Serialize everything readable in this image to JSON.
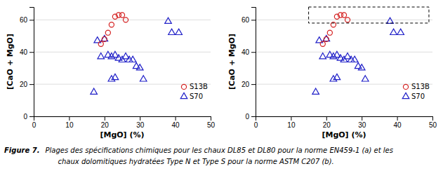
{
  "chart_data": [
    {
      "type": "scatter",
      "xlabel": "[MgO] (%)",
      "ylabel": "[CaO + MgO]",
      "xlim": [
        0,
        50
      ],
      "ylim": [
        0,
        68
      ],
      "xticks": [
        0,
        10,
        20,
        30,
        40,
        50
      ],
      "yticks": [
        0,
        20,
        40,
        60
      ],
      "grid": "y",
      "legend": "lower right",
      "series": [
        {
          "name": "S13B",
          "color": "#d42020",
          "marker": "circle",
          "x": [
            19,
            20,
            21,
            22,
            23,
            24,
            25,
            26
          ],
          "values": [
            45,
            48,
            52,
            57,
            62,
            63,
            63,
            60
          ]
        },
        {
          "name": "S70",
          "color": "#2020c8",
          "marker": "triangle",
          "x": [
            17,
            18,
            19,
            20,
            21,
            22,
            23,
            24,
            25,
            26,
            27,
            28,
            29,
            30,
            31,
            38,
            39,
            41,
            22,
            23
          ],
          "values": [
            15,
            47,
            37,
            48,
            38,
            37,
            38,
            36,
            35,
            37,
            35,
            35,
            31,
            30,
            23,
            59,
            52,
            52,
            23,
            24
          ]
        }
      ]
    },
    {
      "type": "scatter",
      "xlabel": "[MgO] (%)",
      "ylabel": "[CaO + MgO]",
      "xlim": [
        0,
        50
      ],
      "ylim": [
        0,
        68
      ],
      "xticks": [
        0,
        10,
        20,
        30,
        40,
        50
      ],
      "yticks": [
        0,
        20,
        40,
        60
      ],
      "grid": "y",
      "legend": "lower right",
      "series": [
        {
          "name": "S13B",
          "color": "#d42020",
          "marker": "circle",
          "x": [
            19,
            20,
            21,
            22,
            23,
            24,
            25,
            26
          ],
          "values": [
            45,
            48,
            52,
            57,
            62,
            63,
            63,
            60
          ]
        },
        {
          "name": "S70",
          "color": "#2020c8",
          "marker": "triangle",
          "x": [
            17,
            18,
            19,
            20,
            21,
            22,
            23,
            24,
            25,
            26,
            27,
            28,
            29,
            30,
            31,
            38,
            39,
            41,
            22,
            23
          ],
          "values": [
            15,
            47,
            37,
            48,
            38,
            37,
            38,
            36,
            35,
            37,
            35,
            35,
            31,
            30,
            23,
            59,
            52,
            52,
            23,
            24
          ]
        }
      ],
      "highlight": {
        "x0": 15,
        "y0": 58,
        "x1": 49,
        "y1": 68
      }
    }
  ],
  "caption": [
    "Figure 7.",
    "Plages des spécifications chimiques pour les chaux DL85 et DL80 pour la norme EN459-1 (a) et les",
    "chaux dolomitiques hydratées Type N et Type S pour la norme ASTM C207 (b)."
  ]
}
